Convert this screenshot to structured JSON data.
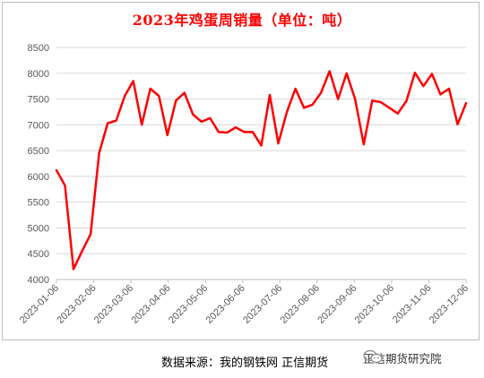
{
  "chart_data": {
    "type": "line",
    "title": "2023年鸡蛋周销量（单位：吨）",
    "xlabel": "",
    "ylabel": "",
    "ylim": [
      4000,
      8500
    ],
    "yticks": [
      4000,
      4500,
      5000,
      5500,
      6000,
      6500,
      7000,
      7500,
      8000,
      8500
    ],
    "x_tick_labels": [
      "2023-01-06",
      "2023-02-06",
      "2023-03-06",
      "2023-04-06",
      "2023-05-06",
      "2023-06-06",
      "2023-07-06",
      "2023-08-06",
      "2023-09-06",
      "2023-10-06",
      "2023-11-06",
      "2023-12-06"
    ],
    "grid": true,
    "line_color": "#ff0000",
    "series": [
      {
        "values": [
          6120,
          5820,
          4200,
          4550,
          4880,
          6450,
          7030,
          7080,
          7560,
          7850,
          7000,
          7700,
          7560,
          6800,
          7470,
          7620,
          7200,
          7060,
          7130,
          6860,
          6850,
          6950,
          6860,
          6860,
          6600,
          7580,
          6640,
          7250,
          7700,
          7330,
          7390,
          7620,
          8040,
          7500,
          8000,
          7500,
          6620,
          7470,
          7440,
          7330,
          7220,
          7460,
          8010,
          7750,
          7990,
          7590,
          7700,
          7010,
          7420
        ]
      }
    ]
  },
  "footer": {
    "source": "数据来源：我的钢铁网 正信期货",
    "watermark": "正信期货研究院"
  }
}
